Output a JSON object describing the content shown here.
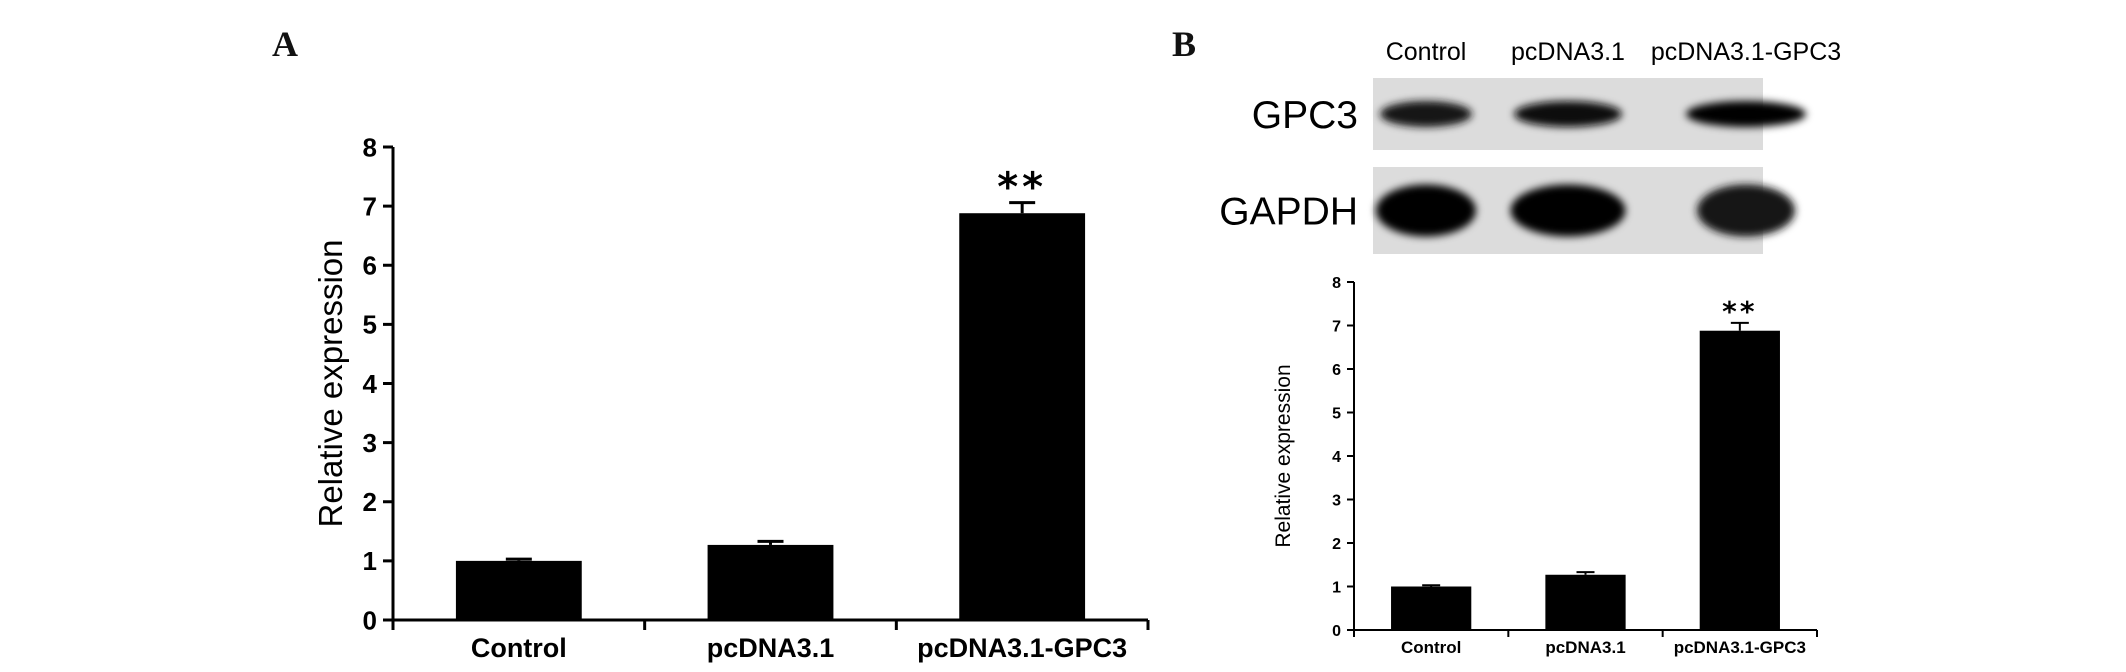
{
  "panels": {
    "a": {
      "letter": "A"
    },
    "b": {
      "letter": "B"
    }
  },
  "western_blot": {
    "lanes": [
      "Control",
      "pcDNA3.1",
      "pcDNA3.1-GPC3"
    ],
    "rows": [
      {
        "label": "GPC3",
        "intensity": [
          0.85,
          0.95,
          1.0
        ]
      },
      {
        "label": "GAPDH",
        "intensity": [
          1.0,
          1.0,
          0.85
        ]
      }
    ]
  },
  "chart_data": [
    {
      "type": "bar",
      "panel": "A",
      "categories": [
        "Control",
        "pcDNA3.1",
        "pcDNA3.1-GPC3"
      ],
      "values": [
        1.0,
        1.27,
        6.88
      ],
      "errors": [
        0.03,
        0.06,
        0.18
      ],
      "annotations": [
        "",
        "",
        "**"
      ],
      "ylabel": "Relative expression",
      "ylim": [
        0,
        8
      ],
      "yticks": [
        "0",
        "1",
        "2",
        "3",
        "4",
        "5",
        "6",
        "7",
        "8"
      ],
      "bar_color": "#000000"
    },
    {
      "type": "bar",
      "panel": "B",
      "categories": [
        "Control",
        "pcDNA3.1",
        "pcDNA3.1-GPC3"
      ],
      "values": [
        1.0,
        1.27,
        6.88
      ],
      "errors": [
        0.03,
        0.06,
        0.18
      ],
      "annotations": [
        "",
        "",
        "**"
      ],
      "ylabel": "Relative expression",
      "ylim": [
        0,
        8
      ],
      "yticks": [
        "0",
        "1",
        "2",
        "3",
        "4",
        "5",
        "6",
        "7",
        "8"
      ],
      "bar_color": "#000000"
    }
  ]
}
